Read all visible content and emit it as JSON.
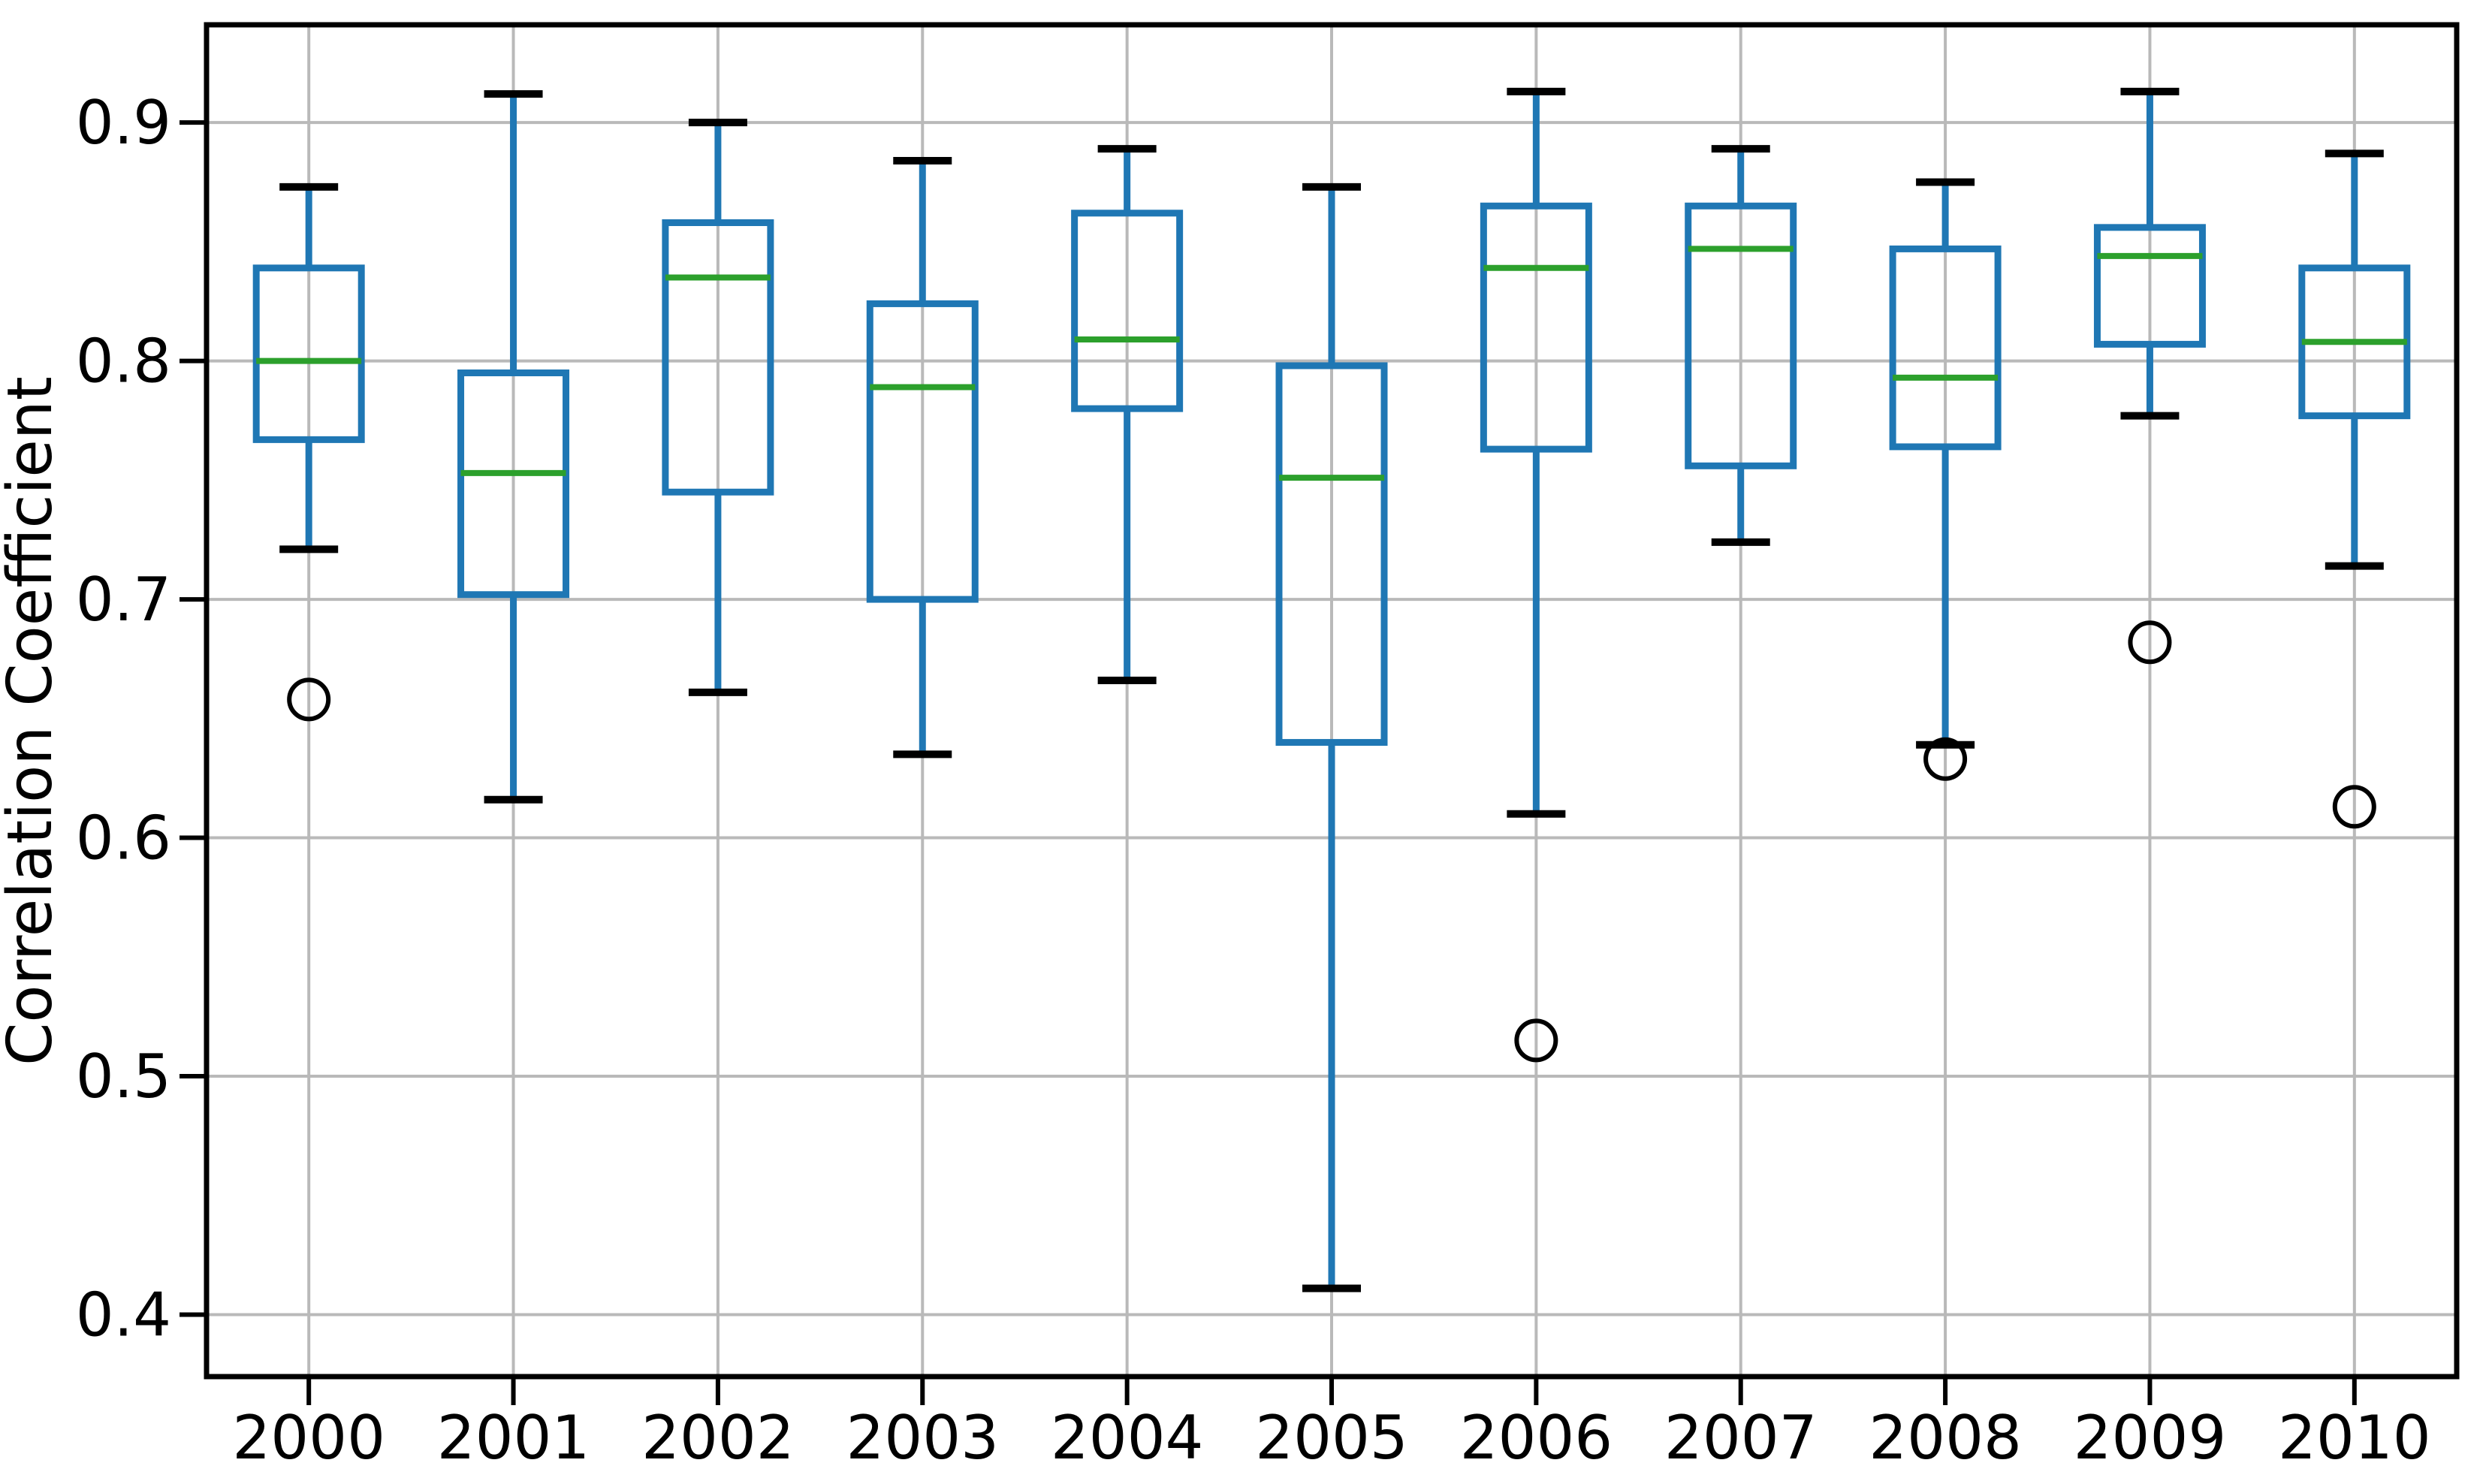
{
  "figure": {
    "background": "#ffffff",
    "title": ""
  },
  "chart_data": {
    "type": "box",
    "title": "",
    "xlabel": "",
    "ylabel": "Correlation Coefficient",
    "categories": [
      "2000",
      "2001",
      "2002",
      "2003",
      "2004",
      "2005",
      "2006",
      "2007",
      "2008",
      "2009",
      "2010"
    ],
    "ylim": [
      0.374,
      0.941
    ],
    "yticks": [
      0.9,
      0.8,
      0.7,
      0.6,
      0.5,
      0.4
    ],
    "ytick_labels": [
      "0.9",
      "0.8",
      "0.7",
      "0.6",
      "0.5",
      "0.4"
    ],
    "grid": "both",
    "legend": "none",
    "series": [
      {
        "category": "2000",
        "whisker_low": 0.721,
        "q1": 0.767,
        "median": 0.8,
        "q3": 0.839,
        "whisker_high": 0.873,
        "outliers": [
          0.658
        ]
      },
      {
        "category": "2001",
        "whisker_low": 0.616,
        "q1": 0.702,
        "median": 0.753,
        "q3": 0.795,
        "whisker_high": 0.912,
        "outliers": []
      },
      {
        "category": "2002",
        "whisker_low": 0.661,
        "q1": 0.745,
        "median": 0.835,
        "q3": 0.858,
        "whisker_high": 0.9,
        "outliers": []
      },
      {
        "category": "2003",
        "whisker_low": 0.635,
        "q1": 0.7,
        "median": 0.789,
        "q3": 0.824,
        "whisker_high": 0.884,
        "outliers": []
      },
      {
        "category": "2004",
        "whisker_low": 0.666,
        "q1": 0.78,
        "median": 0.809,
        "q3": 0.862,
        "whisker_high": 0.889,
        "outliers": []
      },
      {
        "category": "2005",
        "whisker_low": 0.411,
        "q1": 0.64,
        "median": 0.751,
        "q3": 0.798,
        "whisker_high": 0.873,
        "outliers": []
      },
      {
        "category": "2006",
        "whisker_low": 0.61,
        "q1": 0.763,
        "median": 0.839,
        "q3": 0.865,
        "whisker_high": 0.913,
        "outliers": [
          0.515
        ]
      },
      {
        "category": "2007",
        "whisker_low": 0.724,
        "q1": 0.756,
        "median": 0.847,
        "q3": 0.865,
        "whisker_high": 0.889,
        "outliers": []
      },
      {
        "category": "2008",
        "whisker_low": 0.639,
        "q1": 0.764,
        "median": 0.793,
        "q3": 0.847,
        "whisker_high": 0.875,
        "outliers": [
          0.633
        ]
      },
      {
        "category": "2009",
        "whisker_low": 0.777,
        "q1": 0.807,
        "median": 0.844,
        "q3": 0.856,
        "whisker_high": 0.913,
        "outliers": [
          0.682
        ]
      },
      {
        "category": "2010",
        "whisker_low": 0.714,
        "q1": 0.777,
        "median": 0.808,
        "q3": 0.839,
        "whisker_high": 0.887,
        "outliers": [
          0.613
        ]
      }
    ],
    "colors": {
      "box": "#1f77b4",
      "whisker": "#1f77b4",
      "median": "#2ca02c",
      "cap": "#000000",
      "outlier": "#000000",
      "grid": "#b9b9b9",
      "axis": "#000000",
      "background": "#ffffff"
    }
  }
}
